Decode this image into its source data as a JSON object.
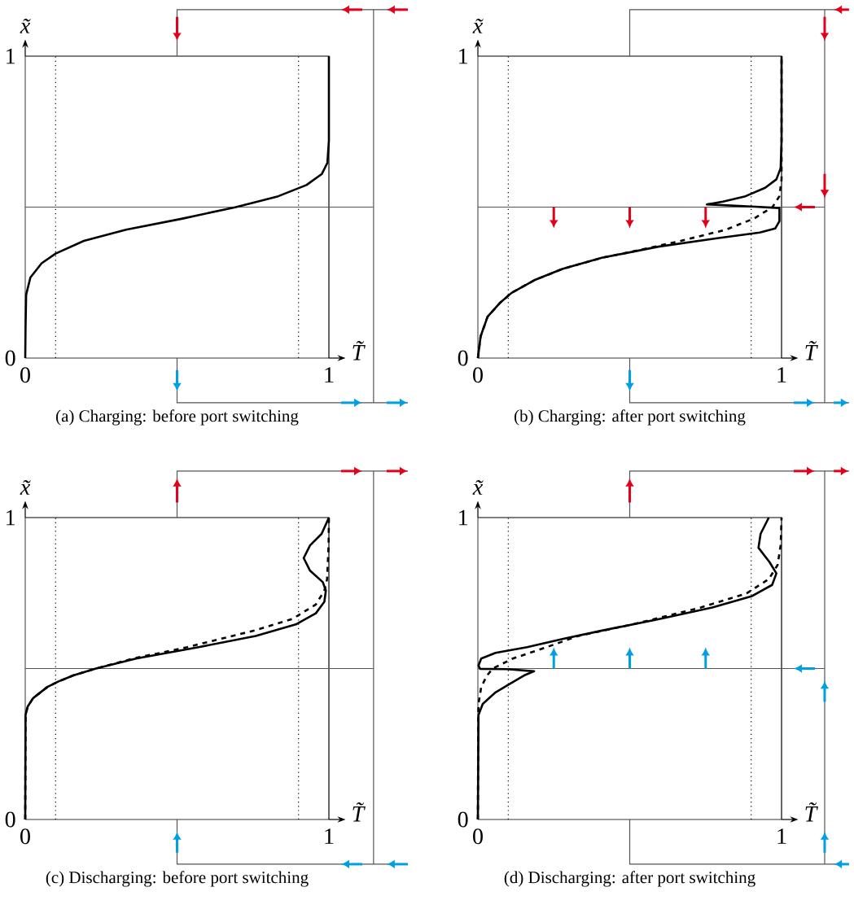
{
  "chart_data": [
    {
      "type": "line",
      "title": "(a) Charging: before port switching",
      "xlabel": "T̃",
      "ylabel": "x̃",
      "xlim": [
        0,
        1
      ],
      "ylim": [
        0,
        1
      ],
      "xticks": [
        0,
        1
      ],
      "yticks": [
        0,
        1
      ],
      "ref_lines": [
        {
          "axis": "x",
          "value": 0.1,
          "line_style": "dotted",
          "color": "#000000"
        },
        {
          "axis": "x",
          "value": 0.9,
          "line_style": "dotted",
          "color": "#000000"
        },
        {
          "axis": "y",
          "value": 0.5,
          "line_style": "solid",
          "color": "#555555"
        }
      ],
      "series": [
        {
          "color": "#000000",
          "line_style": "solid",
          "x": [
            0,
            0.001,
            0.003,
            0.017,
            0.054,
            0.1,
            0.193,
            0.332,
            0.518,
            0.694,
            0.833,
            0.926,
            0.977,
            0.995,
            1,
            1
          ],
          "values": [
            0,
            0.1,
            0.21,
            0.267,
            0.314,
            0.346,
            0.388,
            0.425,
            0.462,
            0.5,
            0.536,
            0.573,
            0.61,
            0.647,
            0.72,
            1
          ]
        }
      ]
    },
    {
      "type": "line",
      "title": "(b) Charging: after port switching",
      "xlabel": "T̃",
      "ylabel": "x̃",
      "xlim": [
        0,
        1
      ],
      "ylim": [
        0,
        1
      ],
      "xticks": [
        0,
        1
      ],
      "yticks": [
        0,
        1
      ],
      "ref_lines": [
        {
          "axis": "x",
          "value": 0.1,
          "line_style": "dotted",
          "color": "#000000"
        },
        {
          "axis": "x",
          "value": 0.9,
          "line_style": "dotted",
          "color": "#000000"
        },
        {
          "axis": "y",
          "value": 0.5,
          "line_style": "solid",
          "color": "#555555"
        }
      ],
      "series": [
        {
          "color": "#000000",
          "line_style": "solid",
          "x": [
            0,
            0.009,
            0.032,
            0.074,
            0.111,
            0.186,
            0.278,
            0.408,
            0.594,
            0.788,
            0.928,
            0.979,
            0.993,
            0.993,
            0.9,
            0.754,
            0.807,
            0.881,
            0.946,
            0.983,
            0.997,
            1,
            1
          ],
          "values": [
            0,
            0.072,
            0.137,
            0.184,
            0.216,
            0.258,
            0.295,
            0.332,
            0.369,
            0.397,
            0.416,
            0.429,
            0.453,
            0.497,
            0.502,
            0.509,
            0.518,
            0.536,
            0.564,
            0.592,
            0.629,
            0.72,
            1
          ]
        },
        {
          "color": "#000000",
          "line_style": "dashed",
          "x": [
            0,
            0.009,
            0.032,
            0.074,
            0.111,
            0.186,
            0.278,
            0.408,
            0.501,
            0.668,
            0.816,
            0.909,
            0.97,
            0.993,
            1,
            1
          ],
          "values": [
            0,
            0.072,
            0.137,
            0.184,
            0.216,
            0.258,
            0.295,
            0.332,
            0.351,
            0.388,
            0.425,
            0.462,
            0.5,
            0.536,
            0.592,
            1
          ]
        }
      ]
    },
    {
      "type": "line",
      "title": "(c) Discharging: before port switching",
      "xlabel": "T̃",
      "ylabel": "x̃",
      "xlim": [
        0,
        1
      ],
      "ylim": [
        0,
        1
      ],
      "xticks": [
        0,
        1
      ],
      "yticks": [
        0,
        1
      ],
      "ref_lines": [
        {
          "axis": "x",
          "value": 0.1,
          "line_style": "dotted",
          "color": "#000000"
        },
        {
          "axis": "x",
          "value": 0.9,
          "line_style": "dotted",
          "color": "#000000"
        },
        {
          "axis": "y",
          "value": 0.5,
          "line_style": "solid",
          "color": "#555555"
        }
      ],
      "series": [
        {
          "color": "#000000",
          "line_style": "solid",
          "x": [
            0,
            0.001,
            0.008,
            0.026,
            0.073,
            0.111,
            0.158,
            0.233,
            0.365,
            0.571,
            0.759,
            0.891,
            0.957,
            0.985,
            0.99,
            0.98,
            0.938,
            0.917,
            0.938,
            0.976,
            1
          ],
          "values": [
            0,
            0.346,
            0.374,
            0.402,
            0.439,
            0.458,
            0.477,
            0.5,
            0.533,
            0.571,
            0.608,
            0.646,
            0.683,
            0.721,
            0.758,
            0.786,
            0.824,
            0.866,
            0.908,
            0.946,
            1
          ]
        },
        {
          "color": "#000000",
          "line_style": "dashed",
          "x": [
            0,
            0.001,
            0.008,
            0.026,
            0.073,
            0.111,
            0.158,
            0.233,
            0.355,
            0.534,
            0.759,
            0.881,
            0.957,
            0.985,
            0.994,
            0.999,
            1
          ],
          "values": [
            0,
            0.346,
            0.374,
            0.402,
            0.439,
            0.458,
            0.477,
            0.5,
            0.533,
            0.571,
            0.627,
            0.665,
            0.712,
            0.758,
            0.796,
            0.908,
            1
          ]
        }
      ]
    },
    {
      "type": "line",
      "title": "(d) Discharging: after port switching",
      "xlabel": "T̃",
      "ylabel": "x̃",
      "xlim": [
        0,
        1
      ],
      "ylim": [
        0,
        1
      ],
      "xticks": [
        0,
        1
      ],
      "yticks": [
        0,
        1
      ],
      "ref_lines": [
        {
          "axis": "x",
          "value": 0.1,
          "line_style": "dotted",
          "color": "#000000"
        },
        {
          "axis": "x",
          "value": 0.9,
          "line_style": "dotted",
          "color": "#000000"
        },
        {
          "axis": "y",
          "value": 0.5,
          "line_style": "solid",
          "color": "#555555"
        }
      ],
      "series": [
        {
          "color": "#000000",
          "line_style": "solid",
          "x": [
            0,
            0.002,
            0.016,
            0.058,
            0.105,
            0.152,
            0.185,
            0.096,
            0.007,
            0.002,
            0.011,
            0.058,
            0.162,
            0.284,
            0.415,
            0.603,
            0.772,
            0.903,
            0.969,
            0.983,
            0.96,
            0.924,
            0.931,
            0.958
          ],
          "values": [
            0,
            0.346,
            0.383,
            0.421,
            0.449,
            0.477,
            0.491,
            0.498,
            0.499,
            0.51,
            0.533,
            0.552,
            0.571,
            0.599,
            0.627,
            0.665,
            0.702,
            0.74,
            0.777,
            0.815,
            0.853,
            0.9,
            0.946,
            1
          ]
        },
        {
          "color": "#000000",
          "line_style": "dashed",
          "x": [
            0,
            0.001,
            0.002,
            0.011,
            0.03,
            0.049,
            0.115,
            0.227,
            0.331,
            0.509,
            0.734,
            0.885,
            0.958,
            0.987,
            0.997,
            1
          ],
          "values": [
            0,
            0.3,
            0.383,
            0.439,
            0.477,
            0.5,
            0.533,
            0.571,
            0.608,
            0.646,
            0.702,
            0.749,
            0.796,
            0.843,
            0.908,
            1
          ]
        }
      ]
    }
  ]
}
